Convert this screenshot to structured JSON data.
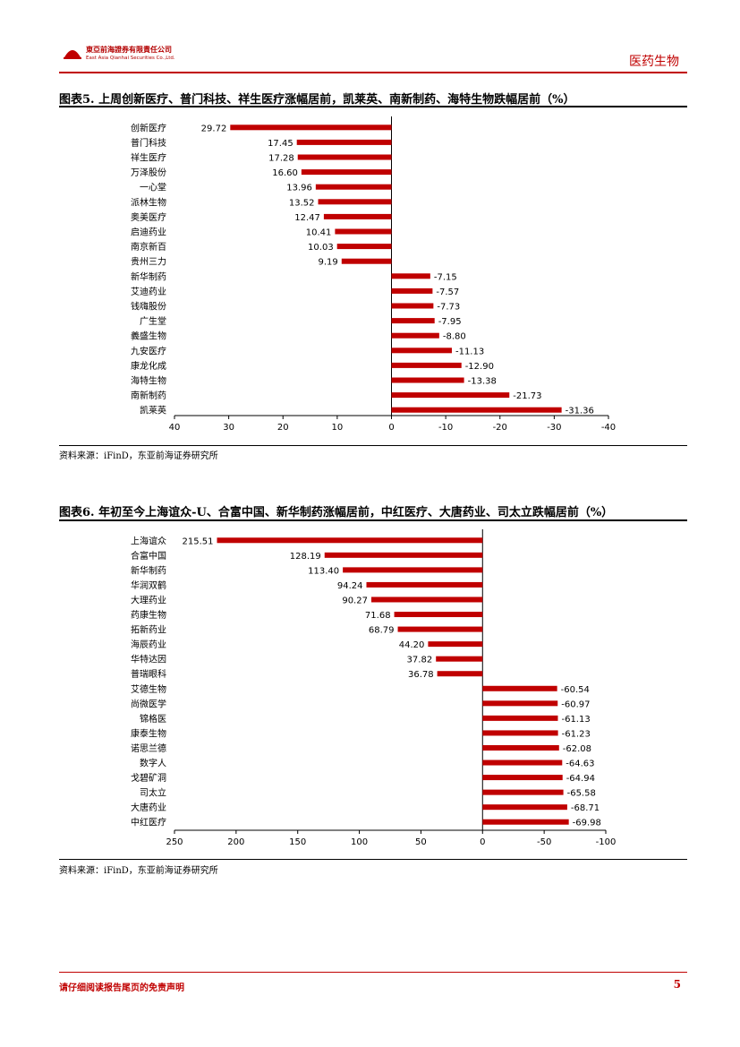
{
  "header": {
    "company_cn": "東亞前海證券有限責任公司",
    "company_en": "East Asia Qianhai Securities Co.,Ltd.",
    "sector": "医药生物",
    "brand_color": "#c00000"
  },
  "figures": [
    {
      "title": "图表5.   上周创新医疗、普门科技、祥生医疗涨幅居前，凯莱英、南新制药、海特生物跌幅居前（%）",
      "source": "资料来源：iFinD，东亚前海证券研究所"
    },
    {
      "title": "图表6.   年初至今上海谊众-U、合富中国、新华制药涨幅居前，中红医疗、大唐药业、司太立跌幅居前（%）",
      "source": "资料来源：iFinD，东亚前海证券研究所"
    }
  ],
  "footer": {
    "disclaimer": "请仔细阅读报告尾页的免责声明",
    "page_number": "5"
  },
  "chart_data": [
    {
      "type": "bar",
      "orientation": "horizontal",
      "x_reversed": true,
      "xlim": [
        -40,
        40
      ],
      "xticks": [
        40,
        30,
        20,
        10,
        0,
        -10,
        -20,
        -30,
        -40
      ],
      "bar_color": "#c00000",
      "categories": [
        "创新医疗",
        "普门科技",
        "祥生医疗",
        "万泽股份",
        "一心堂",
        "派林生物",
        "奥美医疗",
        "启迪药业",
        "南京新百",
        "贵州三力",
        "新华制药",
        "艾迪药业",
        "钱嗨股份",
        "广生堂",
        "義盛生物",
        "九安医疗",
        "康龙化成",
        "海特生物",
        "南新制药",
        "凯莱英"
      ],
      "values": [
        29.72,
        17.45,
        17.28,
        16.6,
        13.96,
        13.52,
        12.47,
        10.41,
        10.03,
        9.19,
        -7.15,
        -7.57,
        -7.73,
        -7.95,
        -8.8,
        -11.13,
        -12.9,
        -13.38,
        -21.73,
        -31.36
      ],
      "labels": [
        "29.72",
        "17.45",
        "17.28",
        "16.60",
        "13.96",
        "13.52",
        "12.47",
        "10.41",
        "10.03",
        "9.19",
        "-7.15",
        "-7.57",
        "-7.73",
        "-7.95",
        "-8.80",
        "-11.13",
        "-12.90",
        "-13.38",
        "-21.73",
        "-31.36"
      ]
    },
    {
      "type": "bar",
      "orientation": "horizontal",
      "x_reversed": true,
      "xlim": [
        -100,
        250
      ],
      "xticks": [
        250,
        200,
        150,
        100,
        50,
        0,
        -50,
        -100
      ],
      "bar_color": "#c00000",
      "categories": [
        "上海谊众",
        "合富中国",
        "新华制药",
        "华润双鹤",
        "大理药业",
        "药康生物",
        "拓新药业",
        "海辰药业",
        "华特达因",
        "普瑞眼科",
        "艾德生物",
        "尚微医学",
        "锦格医",
        "康泰生物",
        "诺思兰德",
        "数字人",
        "戈碧矿洞",
        "司太立",
        "大唐药业",
        "中红医疗"
      ],
      "values": [
        215.51,
        128.19,
        113.4,
        94.24,
        90.27,
        71.68,
        68.79,
        44.2,
        37.82,
        36.78,
        -60.54,
        -60.97,
        -61.13,
        -61.23,
        -62.08,
        -64.63,
        -64.94,
        -65.58,
        -68.71,
        -69.98
      ],
      "labels": [
        "215.51",
        "128.19",
        "113.40",
        "94.24",
        "90.27",
        "71.68",
        "68.79",
        "44.20",
        "37.82",
        "36.78",
        "-60.54",
        "-60.97",
        "-61.13",
        "-61.23",
        "-62.08",
        "-64.63",
        "-64.94",
        "-65.58",
        "-68.71",
        "-69.98"
      ]
    }
  ]
}
